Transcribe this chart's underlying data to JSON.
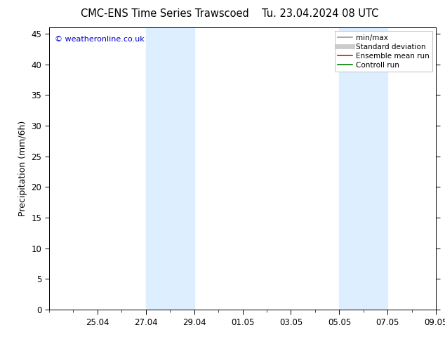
{
  "title_left": "CMC-ENS Time Series Trawscoed",
  "title_right": "Tu. 23.04.2024 08 UTC",
  "ylabel": "Precipitation (mm/6h)",
  "ylim": [
    0,
    46
  ],
  "yticks": [
    0,
    5,
    10,
    15,
    20,
    25,
    30,
    35,
    40,
    45
  ],
  "xtick_labels": [
    "25.04",
    "27.04",
    "29.04",
    "01.05",
    "03.05",
    "05.05",
    "07.05",
    "09.05"
  ],
  "xtick_positions": [
    2,
    4,
    6,
    8,
    10,
    12,
    14,
    16
  ],
  "xlim": [
    0,
    16
  ],
  "shaded_regions": [
    {
      "xmin": 4.0,
      "xmax": 6.0
    },
    {
      "xmin": 12.0,
      "xmax": 14.0
    }
  ],
  "shade_color": "#ddeeff",
  "background_color": "#ffffff",
  "watermark_text": "© weatheronline.co.uk",
  "watermark_color": "#0000cc",
  "legend_items": [
    {
      "label": "min/max",
      "color": "#999999",
      "linewidth": 1.2,
      "linestyle": "-"
    },
    {
      "label": "Standard deviation",
      "color": "#cccccc",
      "linewidth": 5,
      "linestyle": "-"
    },
    {
      "label": "Ensemble mean run",
      "color": "#ff0000",
      "linewidth": 1.2,
      "linestyle": "-"
    },
    {
      "label": "Controll run",
      "color": "#008000",
      "linewidth": 1.2,
      "linestyle": "-"
    }
  ],
  "tick_fontsize": 8.5,
  "label_fontsize": 9,
  "title_fontsize": 10.5,
  "watermark_fontsize": 8
}
